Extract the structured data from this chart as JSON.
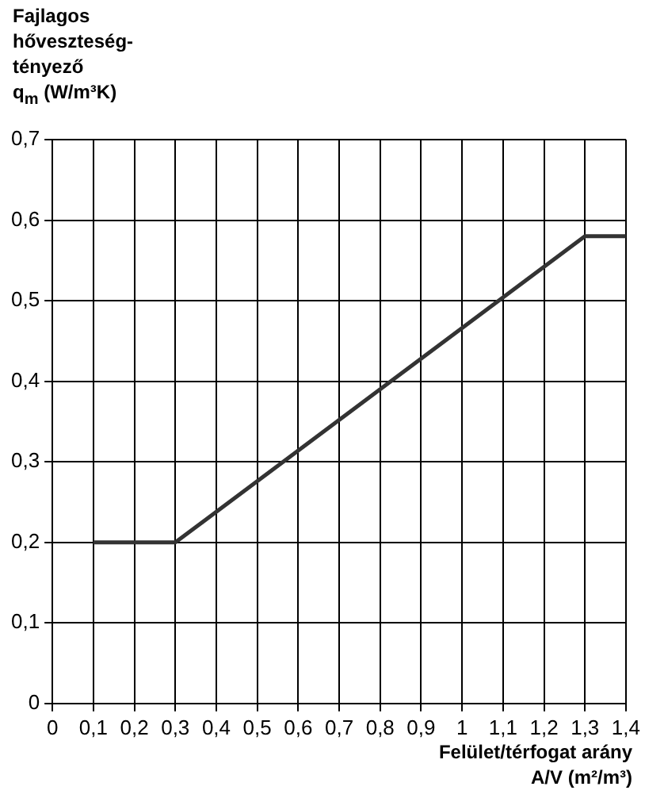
{
  "chart_data": {
    "type": "line",
    "ylabel": "Fajlagos\nhőveszteség-\ntényező\nq$_{m}$ (W/m³K)",
    "xlabel": "Felület/térfogat arány\nA/V (m²/m³)",
    "x": [
      0.1,
      0.3,
      1.3,
      1.4
    ],
    "series": [
      {
        "color": "#333333",
        "values": [
          0.2,
          0.2,
          0.58,
          0.58
        ]
      }
    ],
    "xlim": [
      0,
      1.4
    ],
    "xticks": [
      0,
      {
        "value": 0.1,
        "label": "0,1"
      },
      {
        "value": 0.2,
        "label": "0,2"
      },
      {
        "value": 0.3,
        "label": "0,3"
      },
      {
        "value": 0.4,
        "label": "0,4"
      },
      {
        "value": 0.5,
        "label": "0,5"
      },
      {
        "value": 0.6,
        "label": "0,6"
      },
      {
        "value": 0.7,
        "label": "0,7"
      },
      {
        "value": 0.8,
        "label": "0,8"
      },
      {
        "value": 0.9,
        "label": "0,9"
      },
      1,
      {
        "value": 1.1,
        "label": "1,1"
      },
      {
        "value": 1.2,
        "label": "1,2"
      },
      {
        "value": 1.3,
        "label": "1,3"
      },
      {
        "value": 1.4,
        "label": "1,4"
      }
    ],
    "ylim": [
      0,
      0.7
    ],
    "yticks": [
      0,
      {
        "value": 0.1,
        "label": "0,1"
      },
      {
        "value": 0.2,
        "label": "0,2"
      },
      {
        "value": 0.3,
        "label": "0,3"
      },
      {
        "value": 0.4,
        "label": "0,4"
      },
      {
        "value": 0.5,
        "label": "0,5"
      },
      {
        "value": 0.6,
        "label": "0,6"
      },
      {
        "value": 0.7,
        "label": "0,7"
      }
    ],
    "grid": true,
    "legend": false,
    "marker": "none",
    "line_style": "solid"
  }
}
